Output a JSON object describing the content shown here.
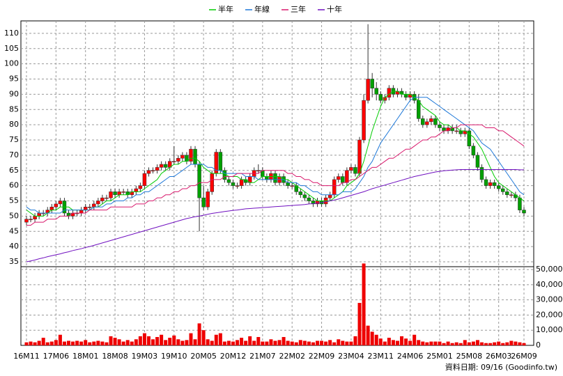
{
  "chart_data": {
    "type": "candlestick",
    "legend_position": "top",
    "grid": true,
    "source": "資料日期: 09/16 (Goodinfo.tw)",
    "categories": [
      "16M11",
      null,
      null,
      null,
      null,
      null,
      null,
      "17M06",
      null,
      null,
      null,
      null,
      null,
      null,
      "18M01",
      null,
      null,
      null,
      null,
      null,
      null,
      "18M08",
      null,
      null,
      null,
      null,
      null,
      null,
      "19M03",
      null,
      null,
      null,
      null,
      null,
      null,
      "19M10",
      null,
      null,
      null,
      null,
      null,
      null,
      "20M05",
      null,
      null,
      null,
      null,
      null,
      null,
      "20M12",
      null,
      null,
      null,
      null,
      null,
      null,
      "21M07",
      null,
      null,
      null,
      null,
      null,
      null,
      "22M02",
      null,
      null,
      null,
      null,
      null,
      null,
      "22M09",
      null,
      null,
      null,
      null,
      null,
      null,
      "23M04",
      null,
      null,
      null,
      null,
      null,
      null,
      "23M11",
      null,
      null,
      null,
      null,
      null,
      null,
      "24M06",
      null,
      null,
      null,
      null,
      null,
      null,
      "25M01",
      null,
      null,
      null,
      null,
      null,
      null,
      "25M08",
      null,
      null,
      null,
      null,
      null,
      null,
      "26M03",
      null,
      null,
      null,
      null,
      null,
      "26M09"
    ],
    "up_color": "#ff0000",
    "down_color": "#00a000",
    "open": [
      48,
      49,
      49,
      50,
      51,
      51,
      52,
      53,
      54,
      55,
      51,
      50,
      51,
      51,
      52,
      53,
      53,
      54,
      55,
      56,
      56,
      58,
      57,
      58,
      58,
      57,
      58,
      59,
      60,
      64,
      65,
      65,
      66,
      67,
      66,
      68,
      68,
      69,
      70,
      68,
      72,
      67,
      56,
      53,
      58,
      64,
      71,
      65,
      62,
      61,
      60,
      60,
      62,
      61,
      63,
      65,
      65,
      63,
      62,
      64,
      61,
      63,
      61,
      60,
      60,
      58,
      57,
      56,
      55,
      54,
      55,
      54,
      56,
      57,
      62,
      63,
      61,
      65,
      66,
      64,
      75,
      88,
      95,
      92,
      90,
      88,
      89,
      92,
      90,
      91,
      90,
      89,
      90,
      88,
      82,
      80,
      81,
      82,
      80,
      79,
      78,
      79,
      78,
      78,
      77,
      78,
      73,
      70,
      66,
      62,
      60,
      61,
      60,
      59,
      58,
      57,
      57,
      56,
      52
    ],
    "high": [
      50,
      50,
      51,
      52,
      52,
      53,
      54,
      55,
      56,
      56,
      52,
      52,
      52,
      53,
      54,
      54,
      55,
      56,
      57,
      57,
      59,
      59,
      59,
      59,
      59,
      59,
      60,
      61,
      65,
      66,
      66,
      67,
      68,
      68,
      69,
      73,
      70,
      71,
      71,
      73,
      73,
      68,
      60,
      59,
      65,
      72,
      72,
      66,
      63,
      62,
      61,
      63,
      63,
      64,
      66,
      67,
      66,
      64,
      65,
      65,
      64,
      64,
      62,
      61,
      61,
      59,
      58,
      57,
      56,
      56,
      56,
      57,
      58,
      63,
      64,
      64,
      66,
      67,
      67,
      76,
      90,
      113,
      97,
      94,
      91,
      90,
      93,
      93,
      92,
      92,
      91,
      91,
      91,
      90,
      83,
      82,
      83,
      83,
      81,
      80,
      80,
      80,
      80,
      79,
      79,
      79,
      74,
      71,
      67,
      63,
      62,
      62,
      61,
      60,
      59,
      58,
      58,
      57,
      53
    ],
    "low": [
      47,
      48,
      48,
      49,
      50,
      50,
      51,
      52,
      53,
      50,
      49,
      49,
      50,
      50,
      51,
      52,
      52,
      53,
      54,
      55,
      55,
      56,
      56,
      57,
      56,
      56,
      57,
      58,
      59,
      63,
      64,
      64,
      65,
      65,
      65,
      67,
      67,
      68,
      67,
      67,
      66,
      45,
      52,
      52,
      57,
      63,
      64,
      61,
      60,
      59,
      59,
      59,
      60,
      60,
      62,
      64,
      62,
      61,
      61,
      60,
      60,
      60,
      59,
      59,
      57,
      56,
      55,
      54,
      53,
      53,
      53,
      53,
      55,
      56,
      61,
      60,
      60,
      64,
      63,
      63,
      74,
      87,
      89,
      88,
      87,
      87,
      88,
      89,
      89,
      89,
      88,
      88,
      87,
      81,
      79,
      79,
      80,
      79,
      78,
      77,
      77,
      77,
      77,
      76,
      76,
      72,
      69,
      65,
      61,
      59,
      59,
      59,
      58,
      57,
      56,
      56,
      55,
      51,
      50
    ],
    "close": [
      49,
      49,
      50,
      51,
      51,
      52,
      53,
      54,
      55,
      51,
      50,
      51,
      51,
      52,
      53,
      53,
      54,
      55,
      56,
      56,
      58,
      57,
      58,
      58,
      57,
      58,
      59,
      60,
      64,
      65,
      65,
      66,
      67,
      66,
      68,
      68,
      69,
      70,
      68,
      72,
      67,
      56,
      53,
      58,
      64,
      71,
      65,
      62,
      61,
      60,
      60,
      62,
      61,
      63,
      65,
      65,
      63,
      62,
      64,
      61,
      63,
      61,
      60,
      60,
      58,
      57,
      56,
      55,
      54,
      55,
      54,
      56,
      57,
      62,
      63,
      61,
      65,
      66,
      64,
      75,
      88,
      95,
      92,
      90,
      88,
      89,
      92,
      90,
      91,
      90,
      89,
      90,
      88,
      82,
      80,
      81,
      82,
      80,
      79,
      78,
      79,
      78,
      78,
      77,
      78,
      73,
      70,
      66,
      62,
      60,
      61,
      60,
      59,
      58,
      57,
      57,
      56,
      52,
      51
    ],
    "series": [
      {
        "name": "半年",
        "color": "#00cc00",
        "values": [
          52,
          51,
          50,
          50,
          50,
          51,
          52,
          52,
          53,
          53,
          53,
          52,
          52,
          52,
          52,
          52,
          53,
          53,
          54,
          55,
          55,
          56,
          57,
          57,
          57,
          58,
          58,
          58,
          59,
          60,
          61,
          62,
          64,
          65,
          66,
          67,
          67,
          68,
          68,
          69,
          69,
          68,
          66,
          65,
          64,
          64,
          64,
          64,
          63,
          63,
          63,
          62,
          62,
          61,
          61,
          62,
          63,
          63,
          63,
          63,
          63,
          62,
          62,
          61,
          60,
          59,
          58,
          57,
          56,
          55,
          55,
          55,
          55,
          56,
          57,
          58,
          60,
          61,
          62,
          64,
          68,
          73,
          78,
          82,
          86,
          89,
          90,
          91,
          91,
          90,
          90,
          90,
          89,
          88,
          86,
          85,
          84,
          83,
          81,
          80,
          80,
          79,
          79,
          78,
          78,
          77,
          76,
          74,
          72,
          69,
          66,
          63,
          61,
          60,
          59,
          58,
          57,
          56,
          55
        ]
      },
      {
        "name": "年線",
        "color": "#1e78d8",
        "values": [
          53,
          52,
          52,
          51,
          51,
          51,
          51,
          51,
          51,
          52,
          52,
          52,
          52,
          52,
          52,
          52,
          53,
          53,
          53,
          54,
          54,
          55,
          55,
          55,
          56,
          56,
          57,
          57,
          58,
          58,
          59,
          60,
          61,
          62,
          63,
          63,
          64,
          65,
          66,
          67,
          67,
          67,
          67,
          66,
          66,
          65,
          65,
          64,
          64,
          64,
          64,
          64,
          63,
          63,
          63,
          62,
          62,
          62,
          62,
          62,
          62,
          62,
          61,
          61,
          61,
          60,
          60,
          59,
          58,
          58,
          57,
          57,
          57,
          57,
          57,
          58,
          58,
          58,
          59,
          61,
          63,
          66,
          68,
          71,
          74,
          76,
          78,
          80,
          82,
          84,
          86,
          88,
          89,
          89,
          89,
          89,
          88,
          87,
          86,
          85,
          84,
          83,
          82,
          81,
          80,
          79,
          78,
          76,
          74,
          73,
          72,
          70,
          68,
          66,
          64,
          62,
          60,
          58,
          57
        ]
      },
      {
        "name": "三年",
        "color": "#d8186c",
        "values": [
          47,
          47,
          48,
          48,
          48,
          49,
          49,
          49,
          50,
          50,
          50,
          51,
          51,
          51,
          51,
          52,
          52,
          52,
          52,
          52,
          53,
          53,
          53,
          53,
          53,
          53,
          54,
          54,
          54,
          55,
          55,
          56,
          56,
          57,
          57,
          58,
          58,
          59,
          59,
          60,
          60,
          61,
          61,
          61,
          62,
          62,
          62,
          63,
          63,
          63,
          64,
          64,
          64,
          64,
          64,
          64,
          65,
          65,
          65,
          65,
          65,
          65,
          64,
          64,
          63,
          63,
          62,
          62,
          61,
          61,
          60,
          60,
          60,
          60,
          60,
          61,
          61,
          62,
          62,
          63,
          64,
          65,
          66,
          66,
          67,
          68,
          69,
          69,
          70,
          71,
          72,
          72,
          73,
          74,
          75,
          75,
          76,
          76,
          77,
          78,
          78,
          79,
          79,
          80,
          80,
          80,
          80,
          80,
          80,
          79,
          79,
          79,
          78,
          78,
          77,
          76,
          75,
          74,
          73
        ]
      },
      {
        "name": "十年",
        "color": "#7010c0",
        "values": [
          35,
          35.3,
          35.6,
          36,
          36.3,
          36.7,
          37,
          37.3,
          37.6,
          38,
          38.3,
          38.7,
          39,
          39.3,
          39.7,
          40,
          40.4,
          40.8,
          41.2,
          41.6,
          42,
          42.4,
          42.8,
          43.2,
          43.6,
          44,
          44.4,
          44.8,
          45.2,
          45.6,
          46,
          46.4,
          46.8,
          47.2,
          47.6,
          48,
          48.4,
          48.8,
          49.2,
          49.5,
          49.8,
          50,
          50.3,
          50.6,
          50.9,
          51.1,
          51.3,
          51.5,
          51.7,
          51.9,
          52,
          52.2,
          52.4,
          52.5,
          52.6,
          52.7,
          52.8,
          52.9,
          53,
          53.1,
          53.2,
          53.3,
          53.4,
          53.5,
          53.6,
          53.7,
          53.8,
          54,
          54.1,
          54.3,
          54.5,
          54.7,
          55,
          55.3,
          55.6,
          56,
          56.4,
          56.8,
          57.2,
          57.6,
          58,
          58.5,
          59,
          59.4,
          59.8,
          60.2,
          60.6,
          61,
          61.4,
          61.8,
          62.2,
          62.6,
          63,
          63.3,
          63.6,
          63.9,
          64.2,
          64.5,
          64.7,
          64.9,
          65,
          65.1,
          65.2,
          65.3,
          65.3,
          65.3,
          65.3,
          65.3,
          65.3,
          65.3,
          65.3,
          65.3,
          65.3,
          65.3,
          65.3,
          65.3,
          65.3,
          65.2,
          65.2
        ]
      }
    ],
    "volume": {
      "color": "#ee0000",
      "values": [
        2000,
        2500,
        2000,
        3000,
        5000,
        2000,
        2500,
        3500,
        7000,
        2500,
        3000,
        2500,
        3000,
        2500,
        3500,
        2000,
        2500,
        3000,
        2500,
        2000,
        6000,
        5000,
        4000,
        2500,
        3500,
        2500,
        4000,
        6000,
        8000,
        6000,
        4000,
        5500,
        7000,
        3500,
        5000,
        6500,
        4000,
        3000,
        3500,
        8000,
        4000,
        14500,
        10000,
        4000,
        3000,
        7000,
        8000,
        2500,
        3000,
        2500,
        3500,
        5000,
        3000,
        6000,
        3000,
        5500,
        2500,
        2500,
        4000,
        3000,
        3500,
        5500,
        3000,
        2500,
        2000,
        3500,
        3000,
        2500,
        2000,
        3000,
        3000,
        2500,
        3500,
        2000,
        4000,
        3000,
        2500,
        2500,
        6000,
        28000,
        54000,
        13000,
        9000,
        7000,
        4500,
        2500,
        5000,
        3500,
        3000,
        6000,
        4500,
        3000,
        7000,
        3500,
        2500,
        2000,
        2500,
        2500,
        2500,
        1500,
        2500,
        1500,
        2000,
        1500,
        3500,
        2000,
        2500,
        3500,
        2000,
        1500,
        1500,
        2000,
        2500,
        1500,
        2000,
        3000,
        2500,
        2000,
        1500
      ]
    },
    "ylim": [
      33.4,
      114.1
    ],
    "yticks": [
      35,
      40,
      45,
      50,
      55,
      60,
      65,
      70,
      75,
      80,
      85,
      90,
      95,
      100,
      105,
      110
    ],
    "y2lim": [
      0,
      51900
    ],
    "y2ticks": [
      0,
      {
        "value": 10000,
        "label": "10,000"
      },
      {
        "value": 20000,
        "label": "20,000"
      },
      {
        "value": 30000,
        "label": "30,000"
      },
      {
        "value": 40000,
        "label": "40,000"
      },
      {
        "value": 50000,
        "label": "50,000"
      }
    ]
  }
}
